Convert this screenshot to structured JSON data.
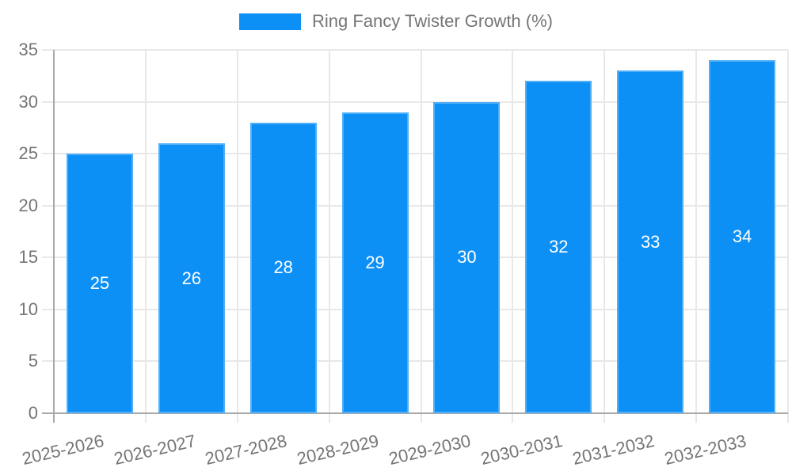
{
  "chart_data": {
    "type": "bar",
    "title": "",
    "legend": {
      "label": "Ring Fancy Twister Growth (%)",
      "position": "top"
    },
    "categories": [
      "2025-2026",
      "2026-2027",
      "2027-2028",
      "2028-2029",
      "2029-2030",
      "2030-2031",
      "2031-2032",
      "2032-2033"
    ],
    "values": [
      25,
      26,
      28,
      29,
      30,
      32,
      33,
      34
    ],
    "data_labels": [
      "25",
      "26",
      "28",
      "29",
      "30",
      "32",
      "33",
      "34"
    ],
    "xlabel": "",
    "ylabel": "",
    "ylim": [
      0,
      35
    ],
    "yticks": [
      0,
      5,
      10,
      15,
      20,
      25,
      30,
      35
    ],
    "grid": true,
    "x_tick_rotation_deg": -13,
    "colors": {
      "bar": "#0d90f5",
      "grid_line": "#e8e8e8",
      "axis_line": "#a9a9a9",
      "axis_text": "#757575",
      "data_label_text": "#ffffff"
    }
  }
}
